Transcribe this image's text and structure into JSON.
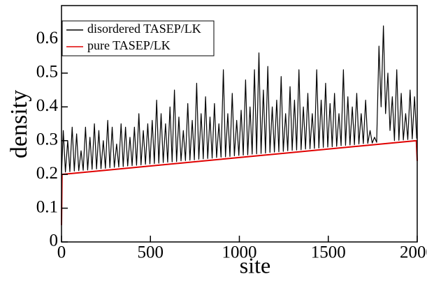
{
  "chart_data": {
    "type": "line",
    "xlabel": "site",
    "ylabel": "density",
    "xlim": [
      0,
      2000
    ],
    "ylim": [
      0,
      0.7
    ],
    "xticks": [
      0,
      500,
      1000,
      1500,
      2000
    ],
    "yticks": [
      0,
      0.1,
      0.2,
      0.3,
      0.4,
      0.5,
      0.6
    ],
    "legend": "upper left",
    "series": [
      {
        "name": "disordered TASEP/LK",
        "color": "#000000",
        "x": [
          0,
          10,
          22,
          35,
          47,
          60,
          72,
          85,
          97,
          110,
          122,
          135,
          147,
          160,
          172,
          185,
          197,
          210,
          222,
          235,
          247,
          260,
          272,
          285,
          297,
          310,
          322,
          335,
          347,
          360,
          372,
          385,
          397,
          410,
          422,
          435,
          447,
          460,
          472,
          485,
          497,
          510,
          522,
          535,
          547,
          560,
          572,
          585,
          597,
          610,
          622,
          635,
          647,
          660,
          672,
          685,
          697,
          710,
          722,
          735,
          747,
          760,
          772,
          785,
          797,
          810,
          822,
          835,
          847,
          860,
          872,
          885,
          897,
          910,
          922,
          935,
          947,
          960,
          972,
          985,
          997,
          1010,
          1022,
          1035,
          1047,
          1060,
          1072,
          1085,
          1097,
          1110,
          1122,
          1135,
          1147,
          1160,
          1172,
          1185,
          1197,
          1210,
          1222,
          1235,
          1247,
          1260,
          1272,
          1285,
          1297,
          1310,
          1322,
          1335,
          1347,
          1360,
          1372,
          1385,
          1397,
          1410,
          1422,
          1435,
          1447,
          1460,
          1472,
          1485,
          1497,
          1510,
          1522,
          1535,
          1547,
          1560,
          1572,
          1585,
          1597,
          1610,
          1622,
          1635,
          1647,
          1660,
          1672,
          1685,
          1697,
          1710,
          1722,
          1735,
          1747,
          1760,
          1772,
          1785,
          1797,
          1810,
          1822,
          1835,
          1847,
          1860,
          1872,
          1885,
          1897,
          1910,
          1922,
          1935,
          1947,
          1960,
          1972,
          1985,
          1997
        ],
        "values": [
          0.2,
          0.33,
          0.207,
          0.3,
          0.208,
          0.34,
          0.21,
          0.32,
          0.211,
          0.27,
          0.212,
          0.34,
          0.213,
          0.31,
          0.215,
          0.35,
          0.216,
          0.33,
          0.217,
          0.3,
          0.218,
          0.36,
          0.22,
          0.34,
          0.221,
          0.29,
          0.222,
          0.35,
          0.223,
          0.34,
          0.225,
          0.31,
          0.226,
          0.34,
          0.227,
          0.38,
          0.228,
          0.33,
          0.23,
          0.35,
          0.231,
          0.36,
          0.232,
          0.42,
          0.233,
          0.38,
          0.235,
          0.35,
          0.236,
          0.4,
          0.237,
          0.45,
          0.238,
          0.37,
          0.24,
          0.33,
          0.241,
          0.41,
          0.242,
          0.36,
          0.243,
          0.47,
          0.245,
          0.38,
          0.246,
          0.43,
          0.247,
          0.37,
          0.248,
          0.41,
          0.25,
          0.35,
          0.251,
          0.51,
          0.252,
          0.38,
          0.253,
          0.44,
          0.255,
          0.36,
          0.256,
          0.39,
          0.257,
          0.48,
          0.258,
          0.4,
          0.26,
          0.51,
          0.261,
          0.56,
          0.262,
          0.45,
          0.263,
          0.52,
          0.265,
          0.4,
          0.266,
          0.42,
          0.267,
          0.49,
          0.268,
          0.38,
          0.27,
          0.46,
          0.271,
          0.42,
          0.272,
          0.51,
          0.273,
          0.4,
          0.275,
          0.44,
          0.276,
          0.38,
          0.277,
          0.51,
          0.278,
          0.42,
          0.28,
          0.47,
          0.281,
          0.41,
          0.282,
          0.44,
          0.283,
          0.38,
          0.285,
          0.51,
          0.286,
          0.43,
          0.287,
          0.4,
          0.288,
          0.44,
          0.29,
          0.38,
          0.291,
          0.42,
          0.292,
          0.33,
          0.293,
          0.31,
          0.295,
          0.58,
          0.4,
          0.64,
          0.38,
          0.5,
          0.33,
          0.43,
          0.3,
          0.51,
          0.301,
          0.44,
          0.302,
          0.38,
          0.303,
          0.45,
          0.305,
          0.43,
          0.306
        ]
      },
      {
        "name": "pure TASEP/LK",
        "color": "#e00000",
        "x": [
          0,
          3,
          1000,
          1995,
          2000
        ],
        "values": [
          0.05,
          0.2,
          0.25,
          0.3,
          0.24
        ]
      }
    ]
  }
}
